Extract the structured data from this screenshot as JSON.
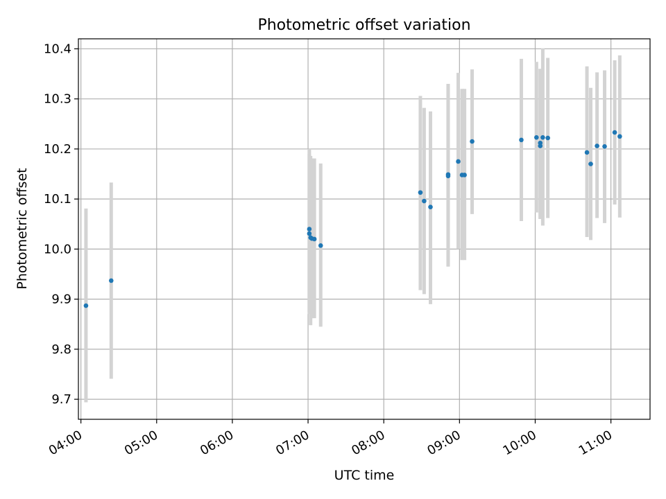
{
  "chart_data": {
    "type": "scatter",
    "title": "Photometric offset variation",
    "xlabel": "UTC time",
    "ylabel": "Photometric offset",
    "x_ticks": [
      "04:00",
      "05:00",
      "06:00",
      "07:00",
      "08:00",
      "09:00",
      "10:00",
      "11:00"
    ],
    "y_ticks": [
      "9.7",
      "9.8",
      "9.9",
      "10.0",
      "10.1",
      "10.2",
      "10.3",
      "10.4"
    ],
    "xlim": [
      "03:58",
      "11:31"
    ],
    "ylim": [
      9.66,
      10.42
    ],
    "grid": true,
    "points": [
      {
        "x": "04:04",
        "y": 9.887,
        "err_low": 9.694,
        "err_high": 10.081
      },
      {
        "x": "04:24",
        "y": 9.937,
        "err_low": 9.741,
        "err_high": 10.133
      },
      {
        "x": "07:01",
        "y": 10.04,
        "err_low": 9.875,
        "err_high": 10.2
      },
      {
        "x": "07:01",
        "y": 10.031,
        "err_low": 9.87,
        "err_high": 10.19
      },
      {
        "x": "07:02",
        "y": 10.023,
        "err_low": 9.848,
        "err_high": 10.186
      },
      {
        "x": "07:03",
        "y": 10.021,
        "err_low": 9.862,
        "err_high": 10.181
      },
      {
        "x": "07:05",
        "y": 10.02,
        "err_low": 9.862,
        "err_high": 10.181
      },
      {
        "x": "07:10",
        "y": 10.007,
        "err_low": 9.845,
        "err_high": 10.171
      },
      {
        "x": "08:29",
        "y": 10.113,
        "err_low": 9.918,
        "err_high": 10.306
      },
      {
        "x": "08:32",
        "y": 10.096,
        "err_low": 9.91,
        "err_high": 10.282
      },
      {
        "x": "08:37",
        "y": 10.084,
        "err_low": 9.89,
        "err_high": 10.275
      },
      {
        "x": "08:51",
        "y": 10.149,
        "err_low": 9.965,
        "err_high": 10.33
      },
      {
        "x": "08:51",
        "y": 10.146,
        "err_low": 9.965,
        "err_high": 10.33
      },
      {
        "x": "08:59",
        "y": 10.175,
        "err_low": 10.0,
        "err_high": 10.352
      },
      {
        "x": "09:02",
        "y": 10.148,
        "err_low": 9.978,
        "err_high": 10.32
      },
      {
        "x": "09:04",
        "y": 10.148,
        "err_low": 9.978,
        "err_high": 10.32
      },
      {
        "x": "09:10",
        "y": 10.215,
        "err_low": 10.07,
        "err_high": 10.359
      },
      {
        "x": "09:49",
        "y": 10.218,
        "err_low": 10.056,
        "err_high": 10.38
      },
      {
        "x": "10:01",
        "y": 10.223,
        "err_low": 10.073,
        "err_high": 10.374
      },
      {
        "x": "10:04",
        "y": 10.212,
        "err_low": 10.06,
        "err_high": 10.36
      },
      {
        "x": "10:04",
        "y": 10.206,
        "err_low": 10.06,
        "err_high": 10.36
      },
      {
        "x": "10:06",
        "y": 10.223,
        "err_low": 10.047,
        "err_high": 10.401
      },
      {
        "x": "10:10",
        "y": 10.222,
        "err_low": 10.062,
        "err_high": 10.382
      },
      {
        "x": "10:41",
        "y": 10.193,
        "err_low": 10.024,
        "err_high": 10.365
      },
      {
        "x": "10:44",
        "y": 10.17,
        "err_low": 10.018,
        "err_high": 10.322
      },
      {
        "x": "10:49",
        "y": 10.206,
        "err_low": 10.062,
        "err_high": 10.353
      },
      {
        "x": "10:55",
        "y": 10.205,
        "err_low": 10.052,
        "err_high": 10.357
      },
      {
        "x": "11:03",
        "y": 10.233,
        "err_low": 10.089,
        "err_high": 10.377
      },
      {
        "x": "11:07",
        "y": 10.225,
        "err_low": 10.063,
        "err_high": 10.387
      }
    ],
    "colors": {
      "point": "#1f77b4",
      "errorbar": "#d3d3d3",
      "grid": "#b0b0b0",
      "axes": "#000000"
    }
  }
}
